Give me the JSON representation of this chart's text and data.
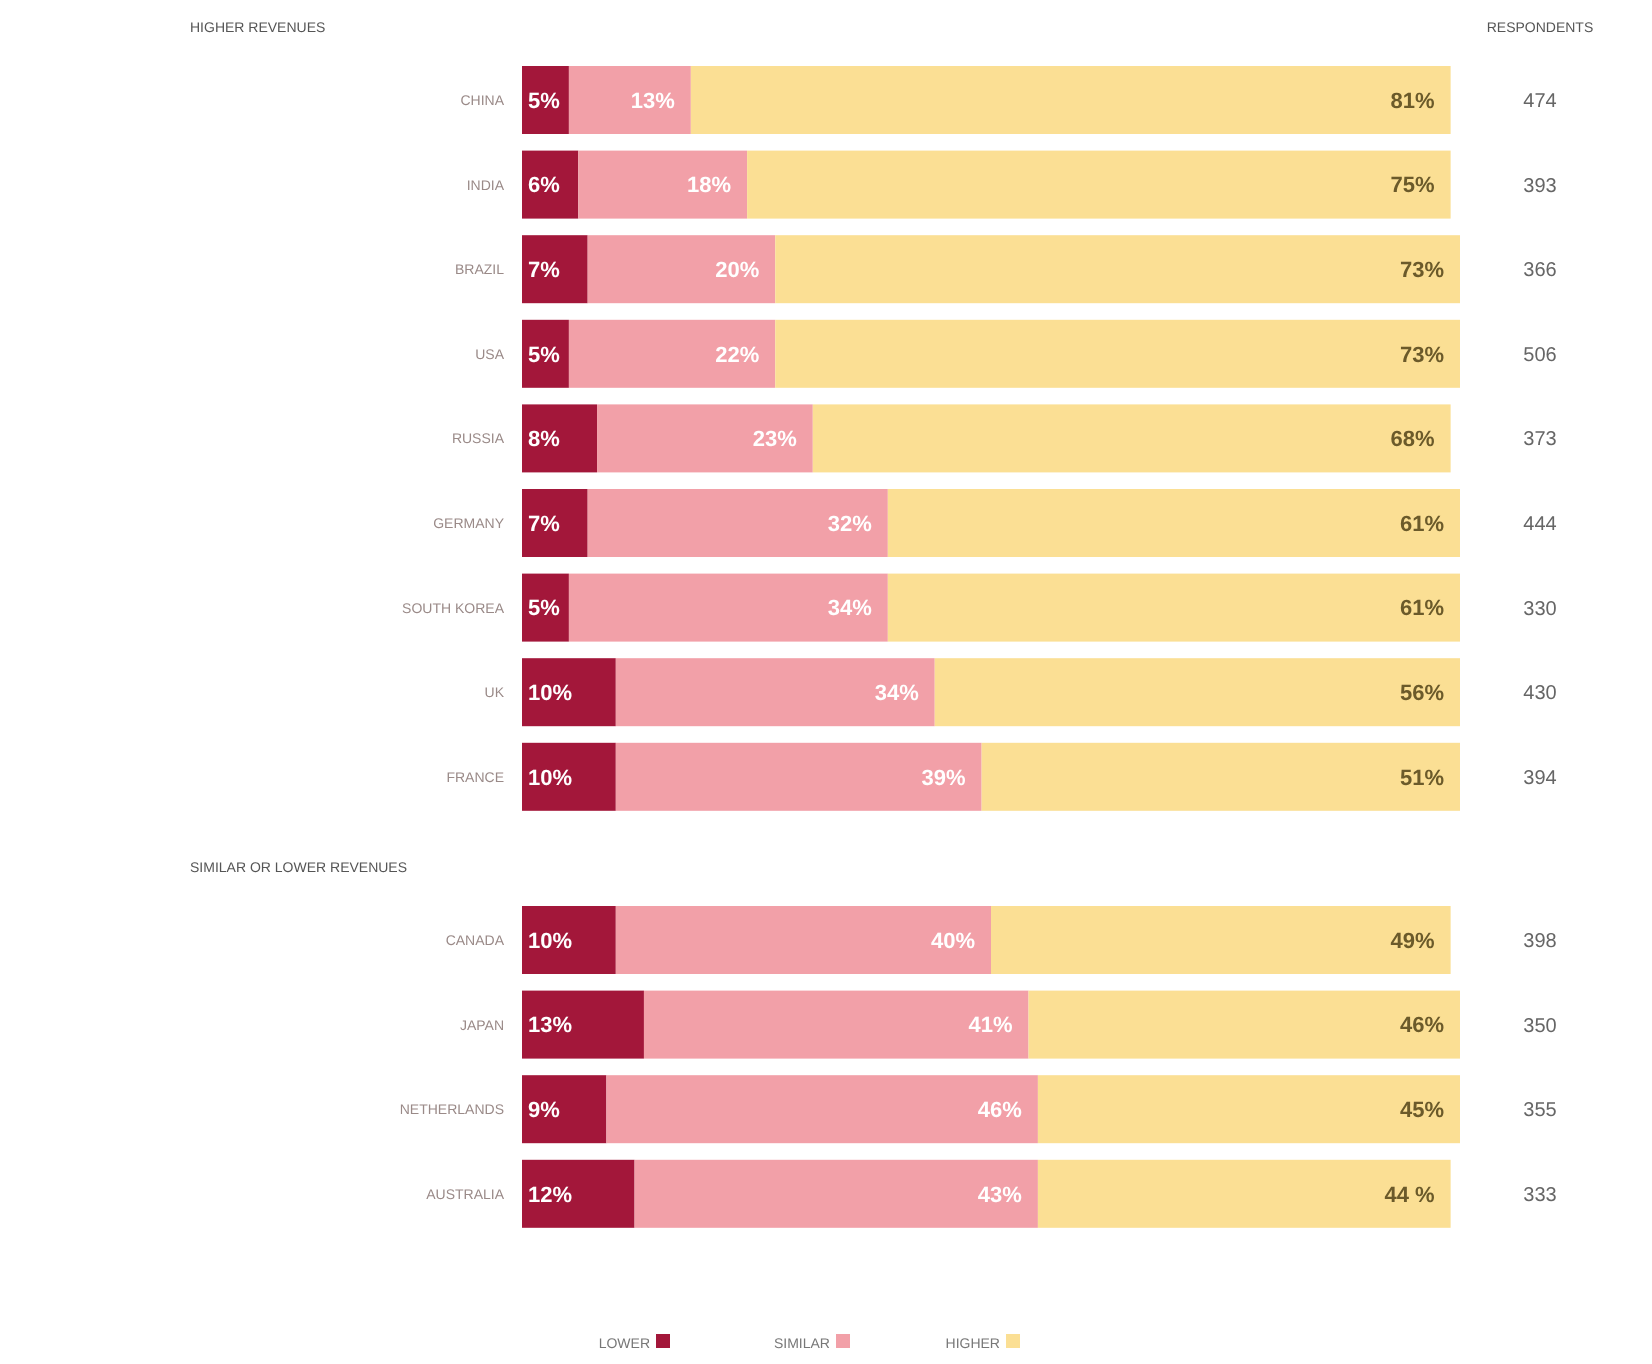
{
  "chart_data": [
    {
      "type": "bar",
      "title": "HIGHER REVENUES",
      "orientation": "horizontal",
      "stacked": true,
      "tick_labels": "y",
      "legend": "bottom",
      "grid": false,
      "categories": [
        "CHINA",
        "INDIA",
        "BRAZIL",
        "USA",
        "RUSSIA",
        "GERMANY",
        "SOUTH KOREA",
        "UK",
        "FRANCE"
      ],
      "series": [
        {
          "name": "LOWER",
          "color": "#a3173a",
          "values": [
            5,
            6,
            7,
            5,
            8,
            7,
            5,
            10,
            10
          ],
          "value_labels": [
            "5%",
            "6%",
            "7%",
            "5%",
            "8%",
            "7%",
            "5%",
            "10%",
            "10%"
          ]
        },
        {
          "name": "SIMILAR",
          "color": "#f2a0a8",
          "values": [
            13,
            18,
            20,
            22,
            23,
            32,
            34,
            34,
            39
          ],
          "value_labels": [
            "13%",
            "18%",
            "20%",
            "22%",
            "23%",
            "32%",
            "34%",
            "34%",
            "39%"
          ]
        },
        {
          "name": "HIGHER",
          "color": "#fbdf94",
          "values": [
            81,
            75,
            73,
            73,
            68,
            61,
            61,
            56,
            51
          ],
          "value_labels": [
            "81%",
            "75%",
            "73%",
            "73%",
            "68%",
            "61%",
            "61%",
            "56%",
            "51%"
          ]
        }
      ],
      "annotations": [
        "RESPONDENTS",
        "474",
        "393",
        "366",
        "506",
        "373",
        "444",
        "330",
        "430",
        "394"
      ]
    },
    {
      "type": "bar",
      "title": "SIMILAR OR LOWER REVENUES",
      "orientation": "horizontal",
      "stacked": true,
      "tick_labels": "y",
      "grid": false,
      "categories": [
        "CANADA",
        "JAPAN",
        "NETHERLANDS",
        "AUSTRALIA"
      ],
      "series": [
        {
          "color": "#a3173a",
          "values": [
            10,
            13,
            9,
            12
          ],
          "value_labels": [
            "10%",
            "13%",
            "9%",
            "12%"
          ]
        },
        {
          "color": "#f2a0a8",
          "values": [
            40,
            41,
            46,
            43
          ],
          "value_labels": [
            "40%",
            "41%",
            "46%",
            "43%"
          ]
        },
        {
          "color": "#fbdf94",
          "values": [
            49,
            46,
            45,
            44
          ],
          "value_labels": [
            "49%",
            "46%",
            "45%",
            "44 %"
          ]
        }
      ],
      "annotations": [
        "398",
        "350",
        "355",
        "333"
      ]
    }
  ]
}
